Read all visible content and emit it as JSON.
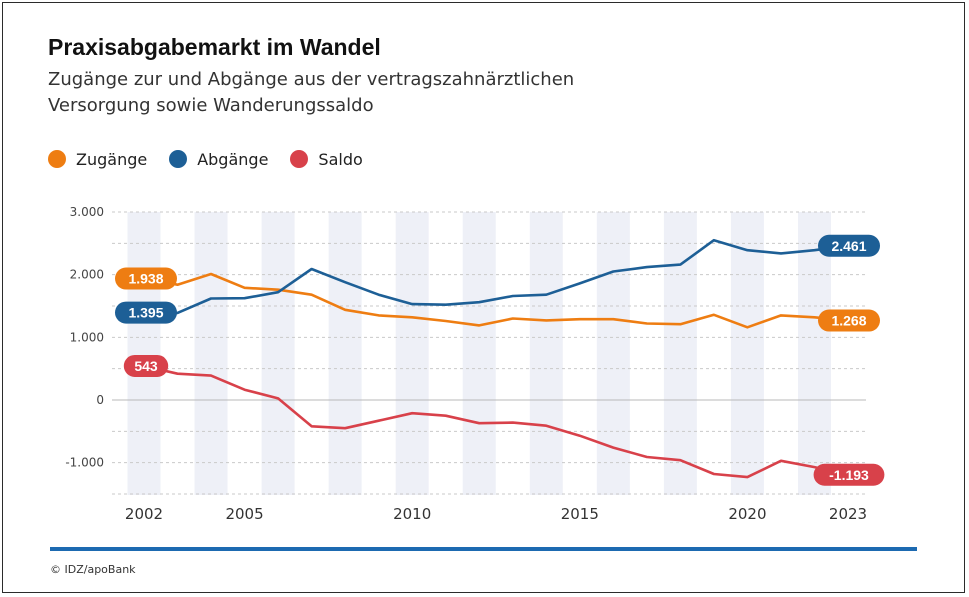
{
  "title": "Praxisabgabemarkt im Wandel",
  "subtitle_line1": "Zugänge zur und Abgänge aus der vertragszahnärztlichen",
  "subtitle_line2": "Versorgung sowie Wanderungssaldo",
  "source": "© IDZ/apoBank",
  "colors": {
    "zugaenge": "#ee7d12",
    "abgaenge": "#1d5f96",
    "saldo": "#d8414a",
    "rule": "#1d6ab1",
    "band": "#eef0f7"
  },
  "chart_data": {
    "type": "line",
    "x": [
      2002,
      2003,
      2004,
      2005,
      2006,
      2007,
      2008,
      2009,
      2010,
      2011,
      2012,
      2013,
      2014,
      2015,
      2016,
      2017,
      2018,
      2019,
      2020,
      2021,
      2022,
      2023
    ],
    "x_ticks": [
      2002,
      2005,
      2010,
      2015,
      2020,
      2023
    ],
    "x_tick_labels": [
      "2002",
      "2005",
      "2010",
      "2015",
      "2020",
      "2023"
    ],
    "ylim": [
      -1500,
      3000
    ],
    "y_ticks": [
      -1000,
      0,
      1000,
      2000,
      3000
    ],
    "y_tick_labels": [
      "-1.000",
      "0",
      "1.000",
      "2.000",
      "3.000"
    ],
    "grid": true,
    "legend_position": "top-left",
    "series": [
      {
        "name": "Zugänge",
        "key": "zugaenge",
        "values": [
          1938,
          1840,
          2010,
          1790,
          1760,
          1680,
          1440,
          1350,
          1320,
          1260,
          1190,
          1300,
          1270,
          1290,
          1290,
          1220,
          1210,
          1360,
          1160,
          1350,
          1320,
          1268
        ],
        "start_label": "1.938",
        "end_label": "1.268"
      },
      {
        "name": "Abgänge",
        "key": "abgaenge",
        "values": [
          1395,
          1390,
          1620,
          1625,
          1720,
          2090,
          1880,
          1680,
          1530,
          1520,
          1560,
          1660,
          1680,
          1860,
          2050,
          2120,
          2160,
          2550,
          2390,
          2340,
          2390,
          2461
        ],
        "start_label": "1.395",
        "end_label": "2.461"
      },
      {
        "name": "Saldo",
        "key": "saldo",
        "values": [
          543,
          420,
          390,
          165,
          25,
          -420,
          -450,
          -330,
          -210,
          -250,
          -370,
          -360,
          -410,
          -570,
          -760,
          -910,
          -960,
          -1180,
          -1230,
          -970,
          -1070,
          -1193
        ],
        "start_label": "543",
        "end_label": "-1.193"
      }
    ]
  }
}
